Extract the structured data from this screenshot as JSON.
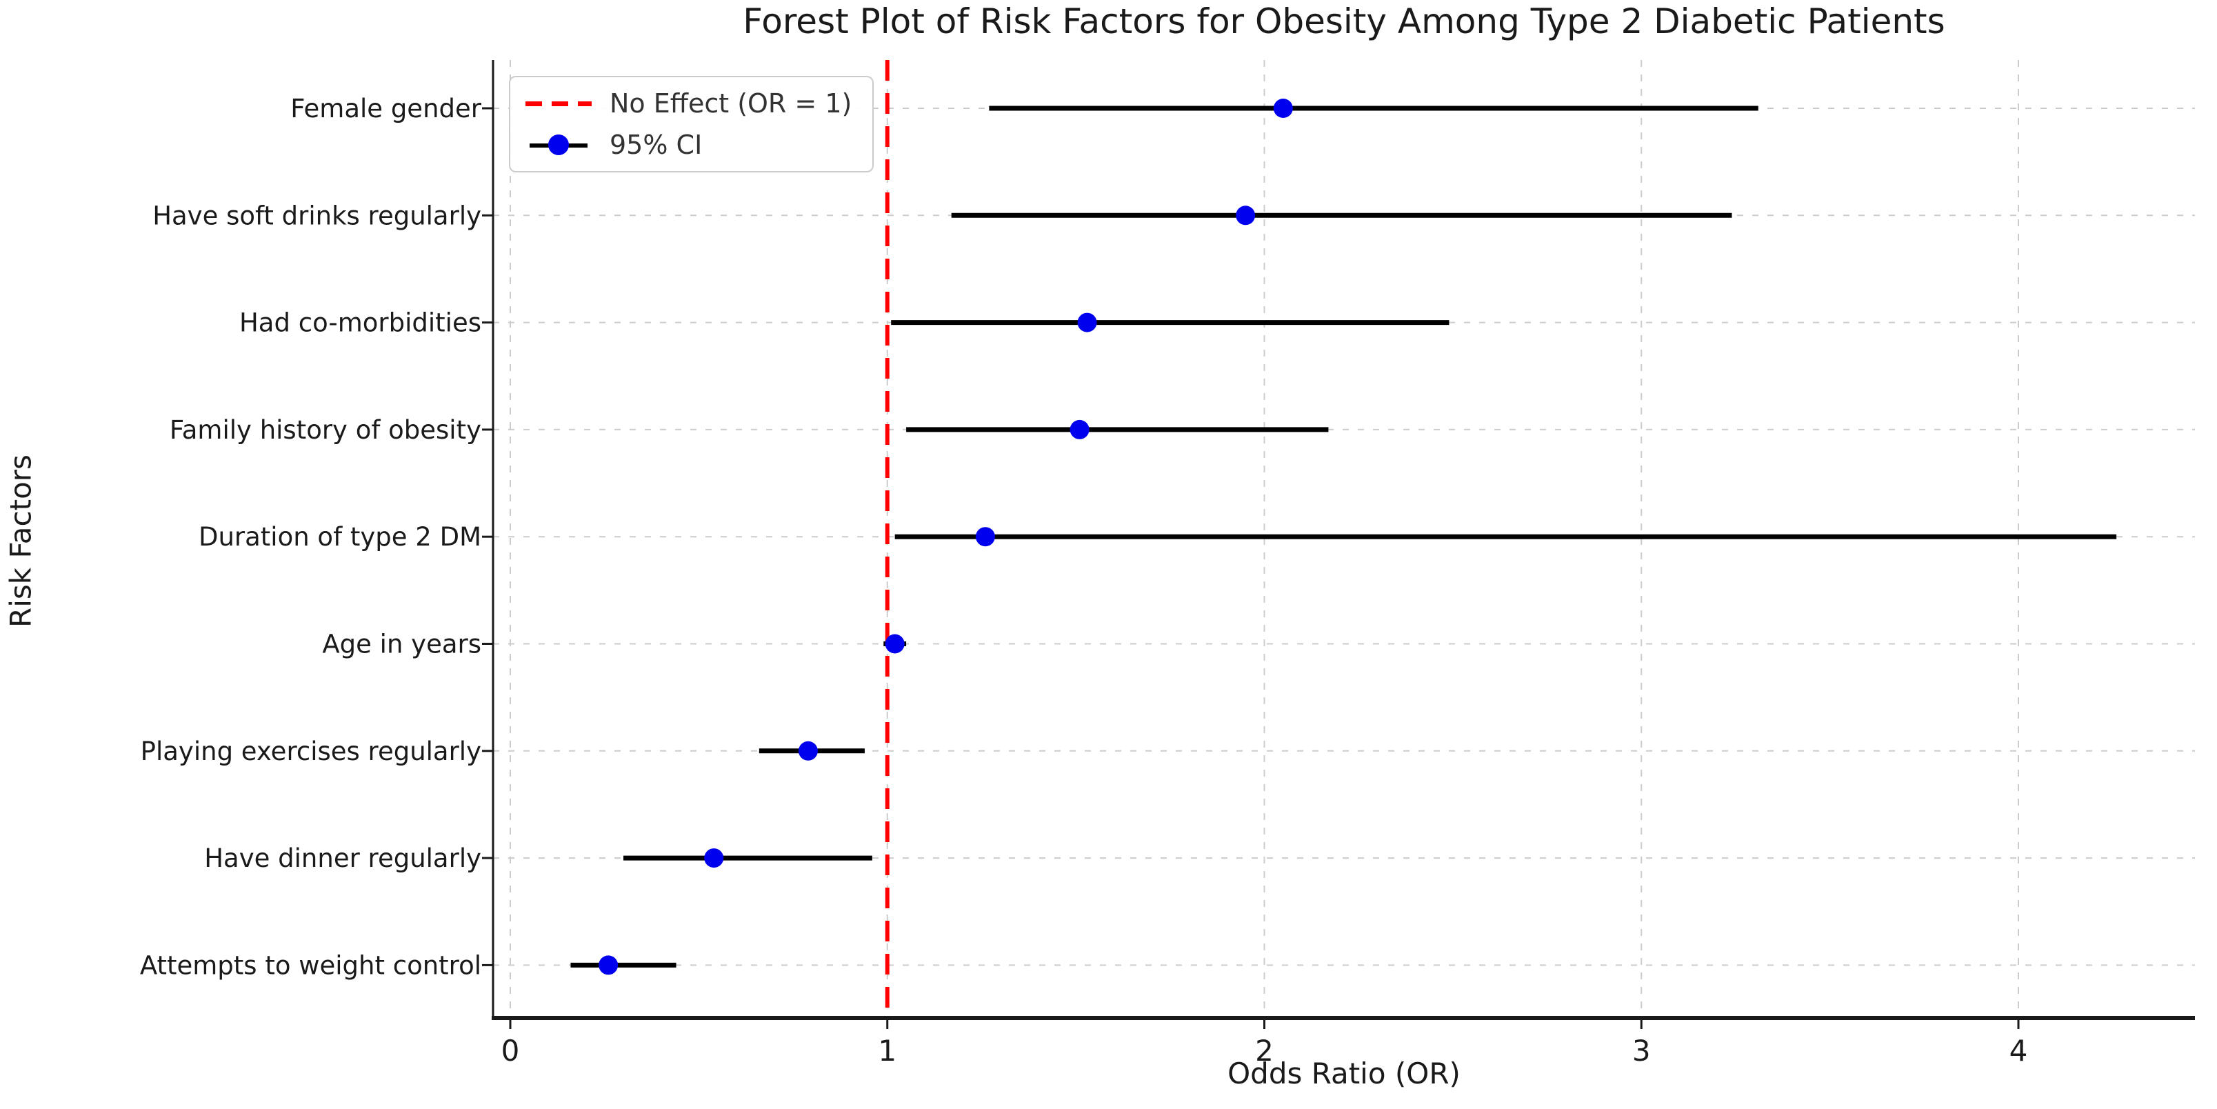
{
  "chart_data": {
    "type": "scatter",
    "subtype": "forest-plot",
    "title": "Forest Plot of Risk Factors for Obesity Among Type 2 Diabetic Patients",
    "xlabel": "Odds Ratio (OR)",
    "ylabel": "Risk Factors",
    "xticks": [
      0,
      1,
      2,
      3,
      4
    ],
    "xlim": [
      -0.05,
      4.47
    ],
    "grid": true,
    "legend_position": "upper-left",
    "legend": [
      "No Effect (OR = 1)",
      "95% CI"
    ],
    "reference_line": {
      "x": 1,
      "style": "dashed",
      "color": "#ff0000"
    },
    "rows": [
      {
        "label": "Female gender",
        "or": 2.05,
        "ci_low": 1.27,
        "ci_high": 3.31
      },
      {
        "label": "Have soft drinks regularly",
        "or": 1.95,
        "ci_low": 1.17,
        "ci_high": 3.24
      },
      {
        "label": "Had co-morbidities",
        "or": 1.53,
        "ci_low": 1.01,
        "ci_high": 2.49
      },
      {
        "label": "Family history of obesity",
        "or": 1.51,
        "ci_low": 1.05,
        "ci_high": 2.17
      },
      {
        "label": "Duration of type 2 DM",
        "or": 1.26,
        "ci_low": 1.02,
        "ci_high": 4.26
      },
      {
        "label": "Age in years",
        "or": 1.02,
        "ci_low": 0.99,
        "ci_high": 1.05
      },
      {
        "label": "Playing exercises regularly",
        "or": 0.79,
        "ci_low": 0.66,
        "ci_high": 0.94
      },
      {
        "label": "Have dinner regularly",
        "or": 0.54,
        "ci_low": 0.3,
        "ci_high": 0.96
      },
      {
        "label": "Attempts to weight control",
        "or": 0.26,
        "ci_low": 0.16,
        "ci_high": 0.44
      }
    ]
  },
  "colors": {
    "point": "#0000ee",
    "ci_line": "#000000",
    "reference_line": "#ff0000",
    "grid": "#cccccc",
    "axis": "#1a1a1a",
    "text": "#1a1a1a"
  }
}
